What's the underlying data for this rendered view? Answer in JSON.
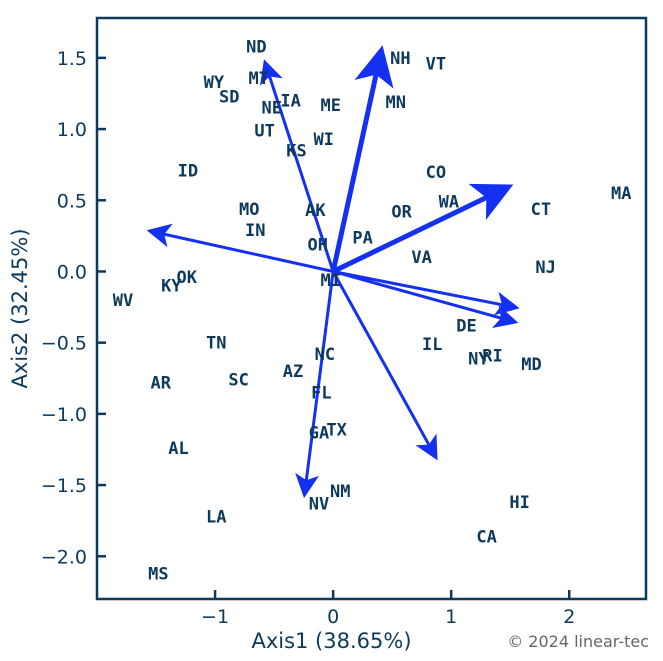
{
  "chart_data": {
    "type": "scatter",
    "subtype": "biplot",
    "xlabel": "Axis1  (38.65%)",
    "ylabel": "Axis2  (32.45%)",
    "xlim": [
      -2.0,
      2.65
    ],
    "ylim": [
      -2.3,
      1.78
    ],
    "xticks": [
      -1,
      0,
      1,
      2
    ],
    "yticks": [
      1.5,
      1.0,
      0.5,
      0.0,
      -0.5,
      -1.0,
      -1.5,
      -2.0
    ],
    "grid": false,
    "colors": {
      "frame": "#0d3a5c",
      "text": "#0d3a5c",
      "arrow": "#1430f0"
    },
    "points": [
      {
        "label": "ND",
        "x": -0.65,
        "y": 1.58
      },
      {
        "label": "MT",
        "x": -0.63,
        "y": 1.36
      },
      {
        "label": "WY",
        "x": -1.01,
        "y": 1.33
      },
      {
        "label": "SD",
        "x": -0.88,
        "y": 1.23
      },
      {
        "label": "IA",
        "x": -0.36,
        "y": 1.2
      },
      {
        "label": "NE",
        "x": -0.52,
        "y": 1.15
      },
      {
        "label": "ME",
        "x": -0.02,
        "y": 1.17
      },
      {
        "label": "NH",
        "x": 0.57,
        "y": 1.5
      },
      {
        "label": "VT",
        "x": 0.87,
        "y": 1.46
      },
      {
        "label": "MN",
        "x": 0.53,
        "y": 1.19
      },
      {
        "label": "UT",
        "x": -0.58,
        "y": 0.99
      },
      {
        "label": "WI",
        "x": -0.08,
        "y": 0.93
      },
      {
        "label": "KS",
        "x": -0.31,
        "y": 0.85
      },
      {
        "label": "ID",
        "x": -1.23,
        "y": 0.71
      },
      {
        "label": "CO",
        "x": 0.87,
        "y": 0.7
      },
      {
        "label": "MA",
        "x": 2.44,
        "y": 0.55
      },
      {
        "label": "WA",
        "x": 0.98,
        "y": 0.49
      },
      {
        "label": "CT",
        "x": 1.76,
        "y": 0.44
      },
      {
        "label": "MO",
        "x": -0.71,
        "y": 0.44
      },
      {
        "label": "AK",
        "x": -0.15,
        "y": 0.43
      },
      {
        "label": "OR",
        "x": 0.58,
        "y": 0.42
      },
      {
        "label": "IN",
        "x": -0.66,
        "y": 0.29
      },
      {
        "label": "PA",
        "x": 0.25,
        "y": 0.24
      },
      {
        "label": "OH",
        "x": -0.13,
        "y": 0.19
      },
      {
        "label": "VA",
        "x": 0.75,
        "y": 0.1
      },
      {
        "label": "NJ",
        "x": 1.8,
        "y": 0.03
      },
      {
        "label": "OK",
        "x": -1.24,
        "y": -0.04
      },
      {
        "label": "MI",
        "x": -0.02,
        "y": -0.06
      },
      {
        "label": "KY",
        "x": -1.37,
        "y": -0.1
      },
      {
        "label": "WV",
        "x": -1.78,
        "y": -0.2
      },
      {
        "label": "DE",
        "x": 1.13,
        "y": -0.38
      },
      {
        "label": "TN",
        "x": -0.99,
        "y": -0.5
      },
      {
        "label": "IL",
        "x": 0.84,
        "y": -0.51
      },
      {
        "label": "NC",
        "x": -0.07,
        "y": -0.58
      },
      {
        "label": "NY",
        "x": 1.23,
        "y": -0.61
      },
      {
        "label": "RI",
        "x": 1.35,
        "y": -0.59
      },
      {
        "label": "MD",
        "x": 1.68,
        "y": -0.65
      },
      {
        "label": "AZ",
        "x": -0.34,
        "y": -0.7
      },
      {
        "label": "AR",
        "x": -1.46,
        "y": -0.78
      },
      {
        "label": "SC",
        "x": -0.8,
        "y": -0.76
      },
      {
        "label": "FL",
        "x": -0.1,
        "y": -0.85
      },
      {
        "label": "TX",
        "x": 0.03,
        "y": -1.11
      },
      {
        "label": "GA",
        "x": -0.12,
        "y": -1.13
      },
      {
        "label": "AL",
        "x": -1.31,
        "y": -1.24
      },
      {
        "label": "NM",
        "x": 0.06,
        "y": -1.54
      },
      {
        "label": "NV",
        "x": -0.12,
        "y": -1.63
      },
      {
        "label": "HI",
        "x": 1.58,
        "y": -1.62
      },
      {
        "label": "LA",
        "x": -0.99,
        "y": -1.72
      },
      {
        "label": "CA",
        "x": 1.3,
        "y": -1.86
      },
      {
        "label": "MS",
        "x": -1.48,
        "y": -2.12
      }
    ],
    "arrows": [
      {
        "x0": 0,
        "y0": 0,
        "x1": -0.57,
        "y1": 1.45
      },
      {
        "x0": 0,
        "y0": 0,
        "x1": 0.4,
        "y1": 1.52
      },
      {
        "x0": 0,
        "y0": 0,
        "x1": 1.45,
        "y1": 0.58
      },
      {
        "x0": 0,
        "y0": 0,
        "x1": -1.53,
        "y1": 0.28
      },
      {
        "x0": 0,
        "y0": 0,
        "x1": 1.53,
        "y1": -0.25
      },
      {
        "x0": 0,
        "y0": 0,
        "x1": 1.52,
        "y1": -0.35
      },
      {
        "x0": 0,
        "y0": 0,
        "x1": 0.86,
        "y1": -1.29
      },
      {
        "x0": 0,
        "y0": 0,
        "x1": -0.24,
        "y1": -1.55
      }
    ]
  },
  "footer": {
    "copyright": "© 2024 linear-tec"
  }
}
